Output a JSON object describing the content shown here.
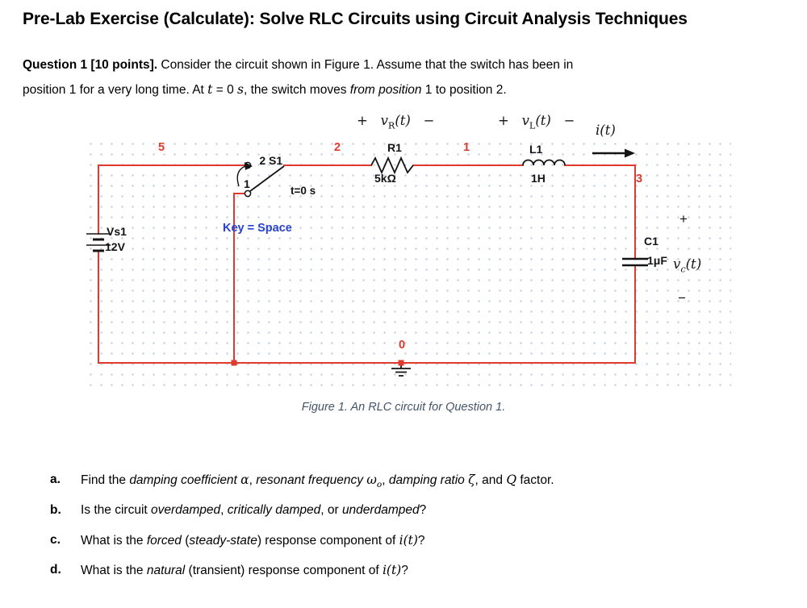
{
  "colors": {
    "wire": "#e0392e",
    "net": "#e0392e",
    "key": "#2743cf",
    "caption": "#44546a"
  },
  "title": "Pre-Lab Exercise (Calculate): Solve RLC Circuits using Circuit Analysis Techniques",
  "intro": {
    "lines": [
      [
        {
          "t": "Question 1 [10 points]. ",
          "b": 1
        },
        {
          "t": "Consider the circuit shown in Figure 1. Assume that the switch has been in"
        }
      ],
      [
        {
          "t": "position 1 for a very long time. At "
        },
        {
          "t": "t",
          "m": 1
        },
        {
          "t": " = 0 "
        },
        {
          "t": "s",
          "m": 1
        },
        {
          "t": ", the switch moves "
        },
        {
          "t": "from position",
          "i": 1
        },
        {
          "t": " 1 to position 2."
        }
      ]
    ]
  },
  "figure": {
    "caption": "Figure 1. An RLC circuit for Question 1.",
    "nets": {
      "n5": "5",
      "n2": "2",
      "n1": "1",
      "n3": "3",
      "n0": "0"
    },
    "labels": {
      "switch_pos2": "2",
      "switch_name": "S1",
      "switch_pos1": "1",
      "switch_time": "t=0 s",
      "switch_key": "Key = Space",
      "source_name": "Vs1",
      "source_value": "12V",
      "resistor_name": "R1",
      "resistor_value": "5kΩ",
      "inductor_name": "L1",
      "inductor_value": "1H",
      "capacitor_name": "C1",
      "capacitor_value": "1μF",
      "cap_plus": "+",
      "cap_minus": "−"
    },
    "annotations": {
      "vr": [
        {
          "t": "+   "
        },
        {
          "t": "v",
          "m": 1
        },
        {
          "t": "R",
          "s": 1,
          "sub": 1
        },
        {
          "t": "(t)",
          "m": 1
        },
        {
          "t": "   −"
        }
      ],
      "vl": [
        {
          "t": "+   "
        },
        {
          "t": "v",
          "m": 1
        },
        {
          "t": "L",
          "s": 1,
          "sub": 1
        },
        {
          "t": "(t)",
          "m": 1
        },
        {
          "t": "   −"
        }
      ],
      "it": [
        {
          "t": "i(t)",
          "m": 1
        }
      ],
      "vc": [
        {
          "t": "v",
          "m": 1
        },
        {
          "t": "c",
          "m": 1,
          "sub": 1
        },
        {
          "t": "(t)",
          "m": 1
        }
      ]
    }
  },
  "questions": [
    {
      "letter": "a.",
      "segments": [
        {
          "t": "Find the "
        },
        {
          "t": "damping coefficient ",
          "i": 1
        },
        {
          "t": "α",
          "m": 1
        },
        {
          "t": ", "
        },
        {
          "t": "resonant frequency ",
          "i": 1
        },
        {
          "t": "ω",
          "m": 1
        },
        {
          "t": "o",
          "m": 1,
          "sub": 1
        },
        {
          "t": ", "
        },
        {
          "t": "damping ratio ",
          "i": 1
        },
        {
          "t": "ζ",
          "m": 1
        },
        {
          "t": ", and "
        },
        {
          "t": "Q",
          "m": 1
        },
        {
          "t": " factor."
        }
      ]
    },
    {
      "letter": "b.",
      "segments": [
        {
          "t": "Is the circuit "
        },
        {
          "t": "overdamped",
          "i": 1
        },
        {
          "t": ", "
        },
        {
          "t": "critically damped",
          "i": 1
        },
        {
          "t": ", or "
        },
        {
          "t": "underdamped",
          "i": 1
        },
        {
          "t": "?"
        }
      ]
    },
    {
      "letter": "c.",
      "segments": [
        {
          "t": "What is the "
        },
        {
          "t": "forced",
          "i": 1
        },
        {
          "t": " ("
        },
        {
          "t": "steady-state",
          "i": 1
        },
        {
          "t": ") response component of "
        },
        {
          "t": "i(t)",
          "m": 1
        },
        {
          "t": "?"
        }
      ]
    },
    {
      "letter": "d.",
      "segments": [
        {
          "t": "What is the "
        },
        {
          "t": "natural",
          "i": 1
        },
        {
          "t": " (transient) response component of "
        },
        {
          "t": "i(t)",
          "m": 1
        },
        {
          "t": "?"
        }
      ]
    }
  ]
}
